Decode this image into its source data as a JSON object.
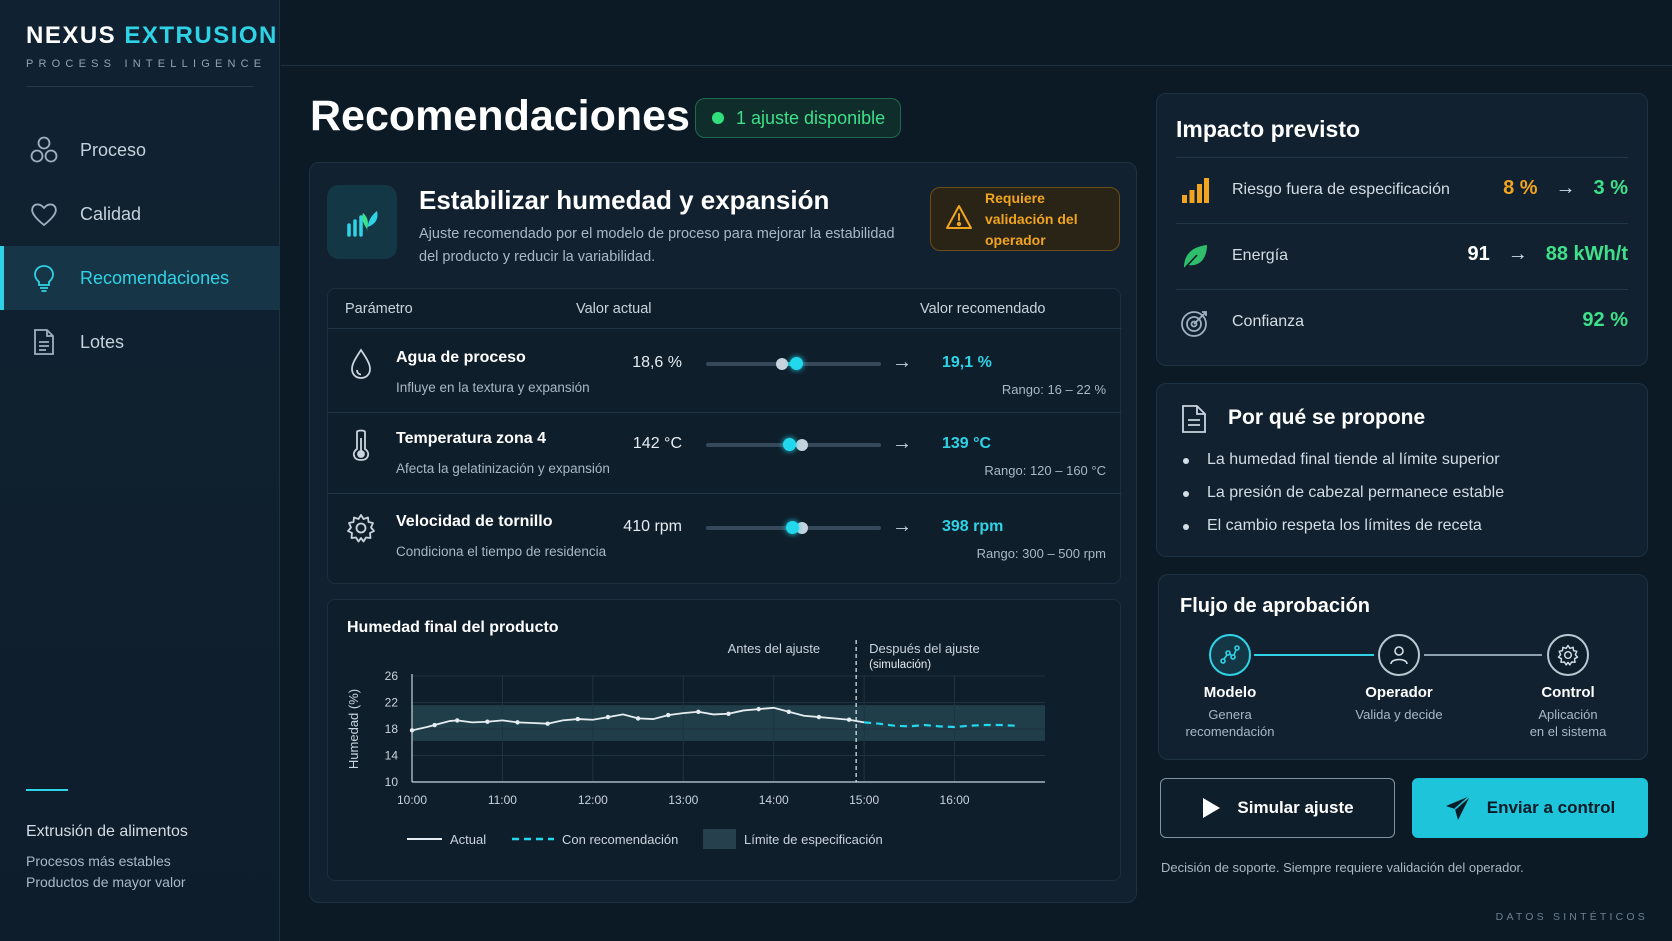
{
  "brand": {
    "name_part1": "NEXUS",
    "name_part2": "EXTRUSION",
    "subtitle": "PROCESS INTELLIGENCE"
  },
  "sidebar": {
    "items": [
      {
        "label": "Proceso",
        "icon": "process-circles-icon"
      },
      {
        "label": "Calidad",
        "icon": "heart-icon"
      },
      {
        "label": "Recomendaciones",
        "icon": "lightbulb-icon",
        "active": true
      },
      {
        "label": "Lotes",
        "icon": "document-icon"
      }
    ],
    "footer": {
      "title": "Extrusión de alimentos",
      "line1": "Procesos más estables",
      "line2": "Productos de mayor valor"
    }
  },
  "page": {
    "title": "Recomendaciones",
    "status": "1 ajuste disponible"
  },
  "recommendation": {
    "title": "Estabilizar humedad y expansión",
    "description": "Ajuste recomendado por el modelo de proceso para mejorar la estabilidad del producto y reducir la variabilidad.",
    "warning": "Requiere validación del operador"
  },
  "params_table": {
    "headers": {
      "param": "Parámetro",
      "current": "Valor actual",
      "recommended": "Valor recomendado"
    },
    "rows": [
      {
        "name": "Agua de proceso",
        "desc": "Influye en la textura y expansión",
        "current": "18,6 %",
        "recommended": "19,1 %",
        "range": "Rango: 16 – 22 %",
        "icon": "water-drop-icon",
        "range_min": 16,
        "range_max": 22,
        "current_value": 18.6,
        "recommended_value": 19.1
      },
      {
        "name": "Temperatura zona 4",
        "desc": "Afecta la gelatinización y expansión",
        "current": "142 °C",
        "recommended": "139 °C",
        "range": "Rango: 120 – 160 °C",
        "icon": "thermometer-icon",
        "range_min": 120,
        "range_max": 160,
        "current_value": 142,
        "recommended_value": 139
      },
      {
        "name": "Velocidad de tornillo",
        "desc": "Condiciona el tiempo de residencia",
        "current": "410 rpm",
        "recommended": "398 rpm",
        "range": "Rango: 300 – 500 rpm",
        "icon": "gear-icon",
        "range_min": 300,
        "range_max": 500,
        "current_value": 410,
        "recommended_value": 398
      }
    ]
  },
  "chart": {
    "title": "Humedad final del producto",
    "before_label": "Antes del ajuste",
    "after_label": "Después del ajuste",
    "after_sub": "(simulación)",
    "legend": {
      "actual": "Actual",
      "recommended": "Con recomendación",
      "spec": "Límite de especificación"
    }
  },
  "chart_data": {
    "type": "line",
    "title": "Humedad final del producto",
    "ylabel": "Humedad (%)",
    "xlabel": "",
    "ylim": [
      10,
      26
    ],
    "y_ticks": [
      "10",
      "14",
      "18",
      "22",
      "26"
    ],
    "x_ticks": [
      "10:00",
      "11:00",
      "12:00",
      "13:00",
      "14:00",
      "15:00",
      "16:00"
    ],
    "spec_band": [
      16.2,
      21.6
    ],
    "split_time": "15:00",
    "series": [
      {
        "name": "Actual",
        "x": [
          "10:00",
          "10:10",
          "10:15",
          "10:25",
          "10:30",
          "10:40",
          "10:50",
          "11:00",
          "11:10",
          "11:20",
          "11:30",
          "11:40",
          "11:50",
          "12:00",
          "12:10",
          "12:20",
          "12:30",
          "12:40",
          "12:50",
          "13:00",
          "13:10",
          "13:20",
          "13:30",
          "13:40",
          "13:50",
          "14:00",
          "14:10",
          "14:20",
          "14:30",
          "14:40",
          "14:50",
          "15:00"
        ],
        "values": [
          17.8,
          18.3,
          18.6,
          19.2,
          19.3,
          19.0,
          19.1,
          19.3,
          19.0,
          18.9,
          18.8,
          19.3,
          19.5,
          19.4,
          19.8,
          20.2,
          19.6,
          19.5,
          20.1,
          20.4,
          20.6,
          20.2,
          20.3,
          20.8,
          21.0,
          21.2,
          20.6,
          20.0,
          19.8,
          19.6,
          19.4,
          19.0
        ]
      },
      {
        "name": "Con recomendación",
        "x": [
          "15:00",
          "15:10",
          "15:20",
          "15:30",
          "15:40",
          "15:50",
          "16:00",
          "16:10",
          "16:20",
          "16:30",
          "16:40"
        ],
        "values": [
          19.0,
          18.8,
          18.5,
          18.4,
          18.6,
          18.4,
          18.3,
          18.5,
          18.6,
          18.6,
          18.5
        ]
      }
    ]
  },
  "impact": {
    "title": "Impacto previsto",
    "rows": [
      {
        "label": "Riesgo fuera de especificación",
        "from": "8 %",
        "to": "3 %",
        "icon": "bar-chart-icon",
        "from_color": "#f0a41f",
        "to_color": "#3ee08a"
      },
      {
        "label": "Energía",
        "from": "91",
        "to": "88 kWh/t",
        "icon": "leaf-icon",
        "from_color": "#ffffff",
        "to_color": "#3ee08a"
      },
      {
        "label": "Confianza",
        "to": "92 %",
        "icon": "target-icon",
        "to_color": "#3ee08a"
      }
    ]
  },
  "why": {
    "title": "Por qué se propone",
    "items": [
      "La humedad final tiende al límite superior",
      "La presión de cabezal permanece estable",
      "El cambio respeta los límites de receta"
    ]
  },
  "flow": {
    "title": "Flujo de aprobación",
    "steps": [
      {
        "name": "Modelo",
        "desc1": "Genera",
        "desc2": "recomendación",
        "icon": "model-graph-icon"
      },
      {
        "name": "Operador",
        "desc1": "Valida y decide",
        "desc2": "",
        "icon": "user-icon"
      },
      {
        "name": "Control",
        "desc1": "Aplicación",
        "desc2": "en el sistema",
        "icon": "gear-icon"
      }
    ]
  },
  "actions": {
    "simulate": "Simular ajuste",
    "send": "Enviar a control"
  },
  "support_note": "Decisión de soporte. Siempre requiere validación del operador.",
  "synthetic_label": "DATOS SINTÉTICOS",
  "colors": {
    "accent": "#2fd3e6",
    "success": "#3ee08a",
    "warning": "#f0a41f",
    "background": "#0c1a26"
  }
}
